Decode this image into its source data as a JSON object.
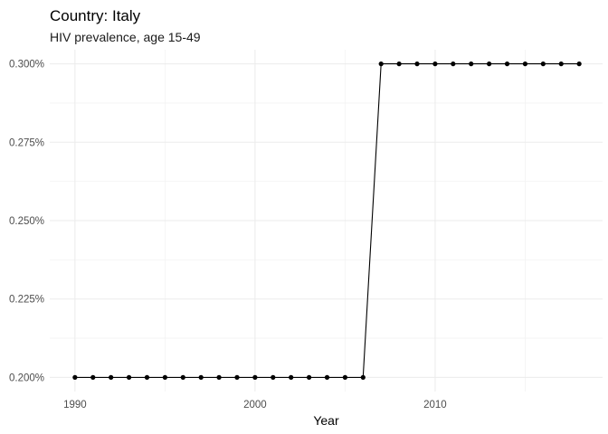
{
  "chart_data": {
    "type": "line",
    "title": "Country: Italy",
    "subtitle": "HIV prevalence, age 15-49",
    "xlabel": "Year",
    "ylabel": "",
    "xlim": [
      1988.6,
      2019.3
    ],
    "ylim": [
      0.1955,
      0.3045
    ],
    "x_ticks": [
      1990,
      2000,
      2010
    ],
    "x_minor_ticks": [
      1995,
      2005,
      2015
    ],
    "y_ticks": [
      0.2,
      0.225,
      0.25,
      0.275,
      0.3
    ],
    "y_tick_labels": [
      "0.200%",
      "0.225%",
      "0.250%",
      "0.275%",
      "0.300%"
    ],
    "y_minor_ticks": [
      0.2125,
      0.2375,
      0.2625,
      0.2875
    ],
    "grid": true,
    "series": [
      {
        "x": [
          1990,
          1991,
          1992,
          1993,
          1994,
          1995,
          1996,
          1997,
          1998,
          1999,
          2000,
          2001,
          2002,
          2003,
          2004,
          2005,
          2006,
          2007,
          2008,
          2009,
          2010,
          2011,
          2012,
          2013,
          2014,
          2015,
          2016,
          2017,
          2018
        ],
        "values": [
          0.2,
          0.2,
          0.2,
          0.2,
          0.2,
          0.2,
          0.2,
          0.2,
          0.2,
          0.2,
          0.2,
          0.2,
          0.2,
          0.2,
          0.2,
          0.2,
          0.2,
          0.3,
          0.3,
          0.3,
          0.3,
          0.3,
          0.3,
          0.3,
          0.3,
          0.3,
          0.3,
          0.3,
          0.3
        ]
      }
    ]
  }
}
